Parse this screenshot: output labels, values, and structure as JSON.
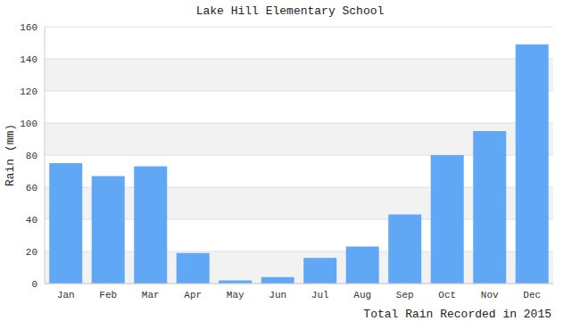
{
  "chart_data": {
    "type": "bar",
    "title": "Lake Hill Elementary School",
    "x_label": "Total Rain Recorded in 2015",
    "y_label": "Rain (mm)",
    "categories": [
      "Jan",
      "Feb",
      "Mar",
      "Apr",
      "May",
      "Jun",
      "Jul",
      "Aug",
      "Sep",
      "Oct",
      "Nov",
      "Dec"
    ],
    "values": [
      75,
      67,
      73,
      19,
      2,
      4,
      16,
      23,
      43,
      80,
      95,
      149
    ],
    "color": "#60a8f5",
    "ylim": [
      0,
      160
    ],
    "yticks": [
      0,
      20,
      40,
      60,
      80,
      100,
      120,
      140,
      160
    ],
    "grid": true
  }
}
